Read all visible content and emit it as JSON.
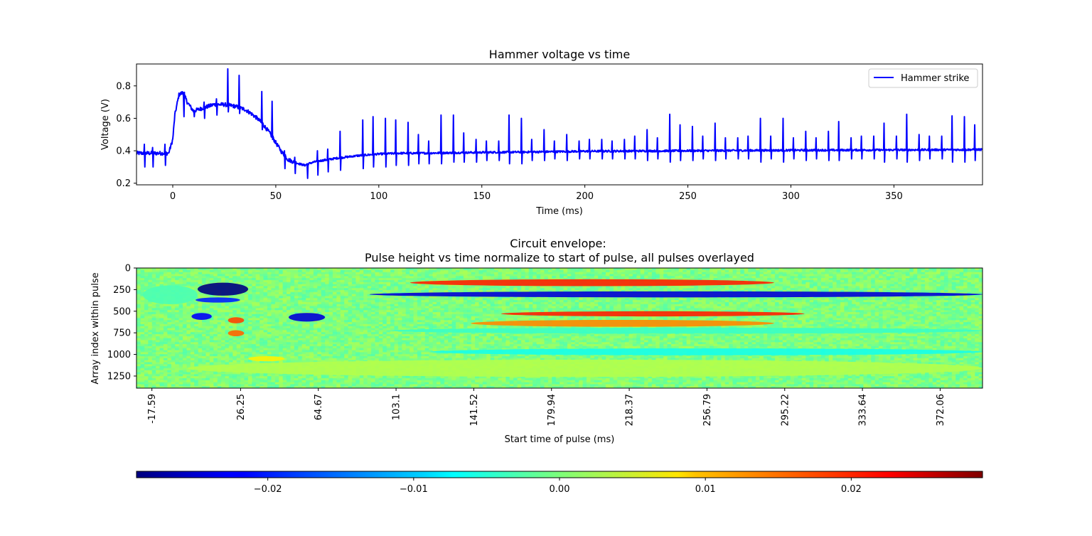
{
  "chart_data": [
    {
      "type": "line",
      "title": "Hammer voltage vs time",
      "xlabel": "Time (ms)",
      "ylabel": "Voltage (V)",
      "xlim": [
        -17.6,
        393
      ],
      "ylim": [
        0.19,
        0.935
      ],
      "xticks": [
        0,
        50,
        100,
        150,
        200,
        250,
        300,
        350
      ],
      "yticks": [
        0.2,
        0.4,
        0.6,
        0.8
      ],
      "ytick_labels": [
        "0.2",
        "0.4",
        "0.6",
        "0.8"
      ],
      "legend": {
        "location": "upper right",
        "entries": [
          "Hammer strike"
        ]
      },
      "series": [
        {
          "name": "Hammer strike",
          "color": "#0000ff",
          "baseline": {
            "x": [
              -17.6,
              -2,
              0,
              1,
              3,
              5,
              7,
              10,
              15,
              20,
              25,
              30,
              35,
              38,
              41,
              44,
              47,
              50,
              53,
              56,
              60,
              64,
              67,
              70,
              75,
              80,
              90,
              100,
              110,
              120,
              150,
              170,
              200,
              250,
              300,
              350,
              393
            ],
            "y": [
              0.385,
              0.385,
              0.47,
              0.62,
              0.745,
              0.76,
              0.7,
              0.645,
              0.665,
              0.685,
              0.685,
              0.675,
              0.655,
              0.63,
              0.6,
              0.56,
              0.51,
              0.45,
              0.39,
              0.345,
              0.325,
              0.31,
              0.325,
              0.335,
              0.345,
              0.355,
              0.37,
              0.38,
              0.385,
              0.385,
              0.39,
              0.392,
              0.397,
              0.4,
              0.403,
              0.405,
              0.407
            ]
          },
          "spikes": [
            {
              "x": -14,
              "up": 0.44,
              "down": 0.3
            },
            {
              "x": -10,
              "up": 0.42,
              "down": 0.3
            },
            {
              "x": -4,
              "up": 0.44,
              "down": 0.31
            },
            {
              "x": 5,
              "up": 0.73,
              "down": 0.61
            },
            {
              "x": 10,
              "up": 0.65,
              "down": 0.61
            },
            {
              "x": 15,
              "up": 0.7,
              "down": 0.6
            },
            {
              "x": 21,
              "up": 0.72,
              "down": 0.62
            },
            {
              "x": 26.5,
              "up": 0.905,
              "down": 0.64
            },
            {
              "x": 32,
              "up": 0.865,
              "down": 0.63
            },
            {
              "x": 43,
              "up": 0.765,
              "down": 0.53
            },
            {
              "x": 48,
              "up": 0.705,
              "down": 0.47
            },
            {
              "x": 54,
              "up": 0.4,
              "down": 0.29
            },
            {
              "x": 59,
              "up": 0.36,
              "down": 0.26
            },
            {
              "x": 65,
              "up": 0.32,
              "down": 0.23
            },
            {
              "x": 70,
              "up": 0.4,
              "down": 0.25
            },
            {
              "x": 75,
              "up": 0.41,
              "down": 0.27
            },
            {
              "x": 81,
              "up": 0.52,
              "down": 0.28
            },
            {
              "x": 92,
              "up": 0.59,
              "down": 0.29
            },
            {
              "x": 97,
              "up": 0.61,
              "down": 0.3
            },
            {
              "x": 103,
              "up": 0.6,
              "down": 0.3
            },
            {
              "x": 108,
              "up": 0.59,
              "down": 0.31
            },
            {
              "x": 114,
              "up": 0.575,
              "down": 0.31
            },
            {
              "x": 119,
              "up": 0.5,
              "down": 0.32
            },
            {
              "x": 124,
              "up": 0.46,
              "down": 0.32
            },
            {
              "x": 130,
              "up": 0.62,
              "down": 0.32
            },
            {
              "x": 136,
              "up": 0.62,
              "down": 0.33
            },
            {
              "x": 141,
              "up": 0.51,
              "down": 0.33
            },
            {
              "x": 147,
              "up": 0.47,
              "down": 0.33
            },
            {
              "x": 152,
              "up": 0.46,
              "down": 0.34
            },
            {
              "x": 158,
              "up": 0.46,
              "down": 0.34
            },
            {
              "x": 163,
              "up": 0.62,
              "down": 0.32
            },
            {
              "x": 169,
              "up": 0.6,
              "down": 0.32
            },
            {
              "x": 174,
              "up": 0.47,
              "down": 0.34
            },
            {
              "x": 180,
              "up": 0.53,
              "down": 0.34
            },
            {
              "x": 185,
              "up": 0.46,
              "down": 0.35
            },
            {
              "x": 191,
              "up": 0.5,
              "down": 0.34
            },
            {
              "x": 197,
              "up": 0.46,
              "down": 0.35
            },
            {
              "x": 202,
              "up": 0.47,
              "down": 0.35
            },
            {
              "x": 208,
              "up": 0.47,
              "down": 0.35
            },
            {
              "x": 213,
              "up": 0.46,
              "down": 0.35
            },
            {
              "x": 219,
              "up": 0.47,
              "down": 0.35
            },
            {
              "x": 224,
              "up": 0.49,
              "down": 0.35
            },
            {
              "x": 230,
              "up": 0.53,
              "down": 0.34
            },
            {
              "x": 235,
              "up": 0.48,
              "down": 0.35
            },
            {
              "x": 241,
              "up": 0.625,
              "down": 0.33
            },
            {
              "x": 246,
              "up": 0.56,
              "down": 0.34
            },
            {
              "x": 252,
              "up": 0.55,
              "down": 0.34
            },
            {
              "x": 257,
              "up": 0.49,
              "down": 0.35
            },
            {
              "x": 263,
              "up": 0.57,
              "down": 0.34
            },
            {
              "x": 268,
              "up": 0.48,
              "down": 0.35
            },
            {
              "x": 274,
              "up": 0.48,
              "down": 0.35
            },
            {
              "x": 279,
              "up": 0.49,
              "down": 0.35
            },
            {
              "x": 285,
              "up": 0.6,
              "down": 0.33
            },
            {
              "x": 290,
              "up": 0.49,
              "down": 0.35
            },
            {
              "x": 296,
              "up": 0.6,
              "down": 0.33
            },
            {
              "x": 301,
              "up": 0.48,
              "down": 0.35
            },
            {
              "x": 307,
              "up": 0.52,
              "down": 0.34
            },
            {
              "x": 312,
              "up": 0.48,
              "down": 0.35
            },
            {
              "x": 318,
              "up": 0.52,
              "down": 0.34
            },
            {
              "x": 323,
              "up": 0.58,
              "down": 0.34
            },
            {
              "x": 329,
              "up": 0.48,
              "down": 0.35
            },
            {
              "x": 334,
              "up": 0.49,
              "down": 0.35
            },
            {
              "x": 340,
              "up": 0.49,
              "down": 0.35
            },
            {
              "x": 345,
              "up": 0.57,
              "down": 0.33
            },
            {
              "x": 351,
              "up": 0.49,
              "down": 0.35
            },
            {
              "x": 356,
              "up": 0.625,
              "down": 0.33
            },
            {
              "x": 362,
              "up": 0.5,
              "down": 0.34
            },
            {
              "x": 367,
              "up": 0.49,
              "down": 0.35
            },
            {
              "x": 373,
              "up": 0.49,
              "down": 0.35
            },
            {
              "x": 378,
              "up": 0.615,
              "down": 0.33
            },
            {
              "x": 384,
              "up": 0.61,
              "down": 0.33
            },
            {
              "x": 389,
              "up": 0.56,
              "down": 0.34
            }
          ]
        }
      ]
    },
    {
      "type": "heatmap",
      "title": "Circuit envelope:\nPulse height vs time normalize to start of pulse, all pulses overlayed",
      "xlabel": "Start time of pulse (ms)",
      "ylabel": "Array index within pulse",
      "xlim": [
        -25.2,
        393
      ],
      "ylim": [
        1390,
        0
      ],
      "xtick_labels": [
        "-17.59",
        "26.25",
        "64.67",
        "103.1",
        "141.52",
        "179.94",
        "218.37",
        "256.79",
        "295.22",
        "333.64",
        "372.06"
      ],
      "yticks": [
        0,
        250,
        500,
        750,
        1000,
        1250
      ],
      "colormap": "jet",
      "vmin": -0.029,
      "vmax": 0.029,
      "background": 0.0,
      "features": [
        {
          "x": [
            5,
            30
          ],
          "y": [
            170,
            320
          ],
          "value": -0.029
        },
        {
          "x": [
            4,
            26
          ],
          "y": [
            340,
            400
          ],
          "value": -0.02
        },
        {
          "x": [
            2,
            12
          ],
          "y": [
            520,
            600
          ],
          "value": -0.022
        },
        {
          "x": [
            20,
            28
          ],
          "y": [
            570,
            640
          ],
          "value": 0.018
        },
        {
          "x": [
            20,
            28
          ],
          "y": [
            720,
            790
          ],
          "value": 0.016
        },
        {
          "x": [
            50,
            68
          ],
          "y": [
            520,
            620
          ],
          "value": -0.024
        },
        {
          "x": [
            90,
            393
          ],
          "y": [
            270,
            340
          ],
          "value": -0.024
        },
        {
          "x": [
            110,
            290
          ],
          "y": [
            130,
            210
          ],
          "value": 0.02
        },
        {
          "x": [
            155,
            305
          ],
          "y": [
            500,
            560
          ],
          "value": 0.02
        },
        {
          "x": [
            140,
            290
          ],
          "y": [
            600,
            680
          ],
          "value": 0.014
        },
        {
          "x": [
            100,
            393
          ],
          "y": [
            690,
            760
          ],
          "value": -0.004
        },
        {
          "x": [
            120,
            393
          ],
          "y": [
            930,
            1010
          ],
          "value": -0.006
        },
        {
          "x": [
            0,
            393
          ],
          "y": [
            1060,
            1260
          ],
          "value": 0.003
        },
        {
          "x": [
            -22,
            5
          ],
          "y": [
            200,
            420
          ],
          "value": -0.003
        },
        {
          "x": [
            30,
            48
          ],
          "y": [
            1020,
            1080
          ],
          "value": 0.008
        }
      ]
    },
    {
      "type": "colorbar",
      "orientation": "horizontal",
      "colormap": "jet",
      "vmin": -0.029,
      "vmax": 0.029,
      "ticks": [
        -0.02,
        -0.01,
        0.0,
        0.01,
        0.02
      ],
      "tick_labels": [
        "−0.02",
        "−0.01",
        "0.00",
        "0.01",
        "0.02"
      ]
    }
  ]
}
